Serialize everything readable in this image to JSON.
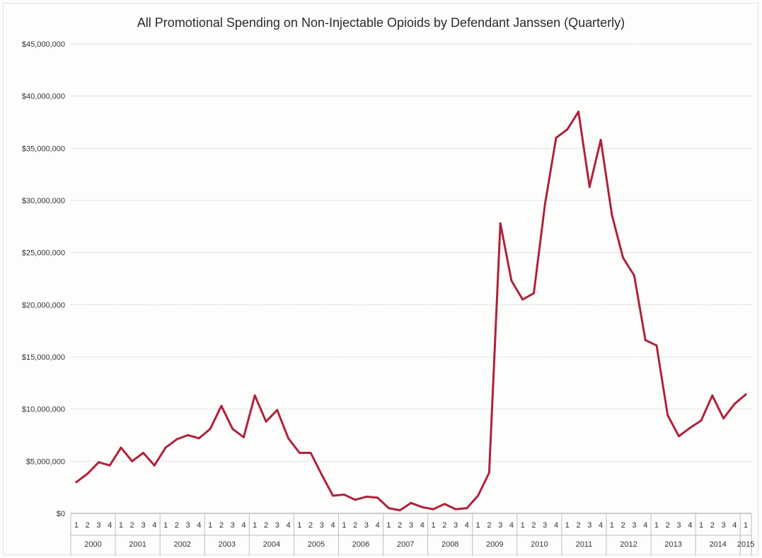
{
  "chart_data": {
    "type": "line",
    "title": "All Promotional Spending on Non-Injectable Opioids by Defendant Janssen (Quarterly)",
    "xlabel": "",
    "ylabel": "",
    "ylim": [
      0,
      45000000
    ],
    "yticks": [
      0,
      5000000,
      10000000,
      15000000,
      20000000,
      25000000,
      30000000,
      35000000,
      40000000,
      45000000
    ],
    "ytick_labels": [
      "$0",
      "$5,000,000",
      "$10,000,000",
      "$15,000,000",
      "$20,000,000",
      "$25,000,000",
      "$30,000,000",
      "$35,000,000",
      "$40,000,000",
      "$45,000,000"
    ],
    "grid": true,
    "line_color": "#b0213a",
    "years": [
      {
        "label": "2000",
        "quarters": [
          "1",
          "2",
          "3",
          "4"
        ]
      },
      {
        "label": "2001",
        "quarters": [
          "1",
          "2",
          "3",
          "4"
        ]
      },
      {
        "label": "2002",
        "quarters": [
          "1",
          "2",
          "3",
          "4"
        ]
      },
      {
        "label": "2003",
        "quarters": [
          "1",
          "2",
          "3",
          "4"
        ]
      },
      {
        "label": "2004",
        "quarters": [
          "1",
          "2",
          "3",
          "4"
        ]
      },
      {
        "label": "2005",
        "quarters": [
          "1",
          "2",
          "3",
          "4"
        ]
      },
      {
        "label": "2006",
        "quarters": [
          "1",
          "2",
          "3",
          "4"
        ]
      },
      {
        "label": "2007",
        "quarters": [
          "1",
          "2",
          "3",
          "4"
        ]
      },
      {
        "label": "2008",
        "quarters": [
          "1",
          "2",
          "3",
          "4"
        ]
      },
      {
        "label": "2009",
        "quarters": [
          "1",
          "2",
          "3",
          "4"
        ]
      },
      {
        "label": "2010",
        "quarters": [
          "1",
          "2",
          "3",
          "4"
        ]
      },
      {
        "label": "2011",
        "quarters": [
          "1",
          "2",
          "3",
          "4"
        ]
      },
      {
        "label": "2012",
        "quarters": [
          "1",
          "2",
          "3",
          "4"
        ]
      },
      {
        "label": "2013",
        "quarters": [
          "1",
          "2",
          "3",
          "4"
        ]
      },
      {
        "label": "2014",
        "quarters": [
          "1",
          "2",
          "3",
          "4"
        ]
      },
      {
        "label": "2015",
        "quarters": [
          "1"
        ]
      }
    ],
    "series": [
      {
        "values": [
          3000000,
          3800000,
          4900000,
          4600000,
          6300000,
          5000000,
          5800000,
          4600000,
          6300000,
          7100000,
          7500000,
          7200000,
          8100000,
          10300000,
          8100000,
          7300000,
          11300000,
          8800000,
          9900000,
          7200000,
          5800000,
          5800000,
          3700000,
          1700000,
          1800000,
          1300000,
          1600000,
          1500000,
          500000,
          300000,
          1000000,
          600000,
          400000,
          900000,
          400000,
          500000,
          1700000,
          3900000,
          27800000,
          22300000,
          20500000,
          21100000,
          29600000,
          36000000,
          36800000,
          38500000,
          31300000,
          35800000,
          28600000,
          24500000,
          22800000,
          16600000,
          16100000,
          9400000,
          7400000,
          8200000,
          8900000,
          11300000,
          9100000,
          10500000,
          11400000
        ]
      }
    ]
  }
}
